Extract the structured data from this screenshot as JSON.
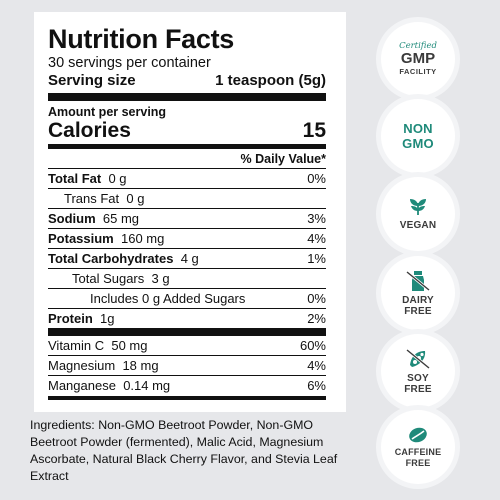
{
  "label": {
    "title": "Nutrition Facts",
    "servings": "30 servings per container",
    "serving_size_label": "Serving size",
    "serving_size_value": "1 teaspoon (5g)",
    "amount_per_serving": "Amount per serving",
    "calories_label": "Calories",
    "calories_value": "15",
    "dv_header": "% Daily Value*",
    "nutrients": [
      {
        "name": "Total Fat",
        "amount": "0 g",
        "dv": "0%"
      },
      {
        "name": "Trans Fat",
        "amount": "0 g",
        "dv": ""
      },
      {
        "name": "Sodium",
        "amount": "65 mg",
        "dv": "3%"
      },
      {
        "name": "Potassium",
        "amount": "160 mg",
        "dv": "4%"
      },
      {
        "name": "Total Carbohydrates",
        "amount": "4 g",
        "dv": "1%"
      },
      {
        "name": "Total Sugars",
        "amount": "3 g",
        "dv": ""
      },
      {
        "name": "Includes 0 g Added Sugars",
        "amount": "",
        "dv": "0%"
      },
      {
        "name": "Protein",
        "amount": "1g",
        "dv": "2%"
      }
    ],
    "vitamins": [
      {
        "name": "Vitamin C",
        "amount": "50 mg",
        "dv": "60%"
      },
      {
        "name": "Magnesium",
        "amount": "18 mg",
        "dv": "4%"
      },
      {
        "name": "Manganese",
        "amount": "0.14 mg",
        "dv": "6%"
      }
    ]
  },
  "ingredients": "Ingredients: Non-GMO Beetroot Powder, Non-GMO Beetroot Powder (fermented), Malic Acid, Magnesium Ascorbate, Natural Black Cherry Flavor, and Stevia Leaf Extract",
  "badges": {
    "gmp": {
      "script": "Certified",
      "big": "GMP",
      "small": "FACILITY"
    },
    "nongmo": {
      "line1": "NON",
      "line2": "GMO"
    },
    "vegan": {
      "text": "VEGAN",
      "icon": "leaf-icon"
    },
    "dairy": {
      "line1": "DAIRY",
      "line2": "FREE",
      "icon": "milk-bottle-crossed-icon"
    },
    "soy": {
      "line1": "SOY",
      "line2": "FREE",
      "icon": "soybean-crossed-icon"
    },
    "caffeine": {
      "line1": "CAFFEINE",
      "line2": "FREE",
      "icon": "coffee-bean-icon"
    }
  },
  "colors": {
    "background": "#e6e7ea",
    "badge_green": "#1f8a7a",
    "badge_text": "#3b3b3b"
  }
}
